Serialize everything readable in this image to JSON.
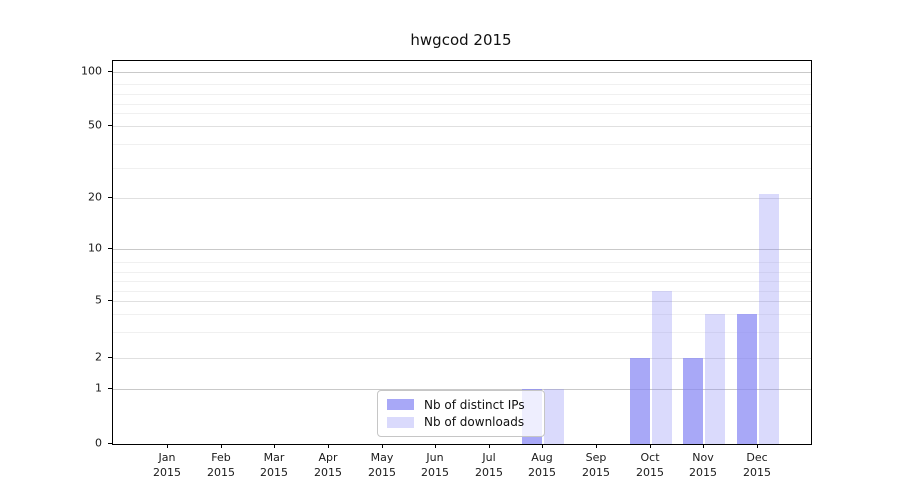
{
  "chart_data": {
    "type": "bar",
    "title": "hwgcod 2015",
    "categories": [
      "Jan",
      "Feb",
      "Mar",
      "Apr",
      "May",
      "Jun",
      "Jul",
      "Aug",
      "Sep",
      "Oct",
      "Nov",
      "Dec"
    ],
    "category_year": "2015",
    "series": [
      {
        "name": "Nb of distinct IPs",
        "color": "rgba(134,134,244,0.72)",
        "values": [
          0,
          0,
          0,
          0,
          0,
          0,
          0,
          1,
          0,
          2,
          2,
          4
        ]
      },
      {
        "name": "Nb of downloads",
        "color": "rgba(134,134,244,0.31)",
        "values": [
          0,
          0,
          0,
          0,
          0,
          0,
          0,
          1,
          0,
          6,
          4,
          21
        ]
      }
    ],
    "y_axis": {
      "scale": "log-like",
      "range": [
        0,
        100
      ],
      "ticks": [
        0,
        1,
        2,
        5,
        10,
        20,
        50,
        100
      ],
      "minor_ticks": [
        3,
        4,
        6,
        7,
        8,
        9,
        30,
        40,
        60,
        70,
        80,
        90
      ]
    },
    "grid": "on",
    "legend_position": "inside-bottom-center",
    "colors": {
      "major_decade_grid": "#c9c9c9",
      "major_grid": "#e0e0e0",
      "minor_grid": "#f0f0f0",
      "axis": "#000000"
    }
  }
}
